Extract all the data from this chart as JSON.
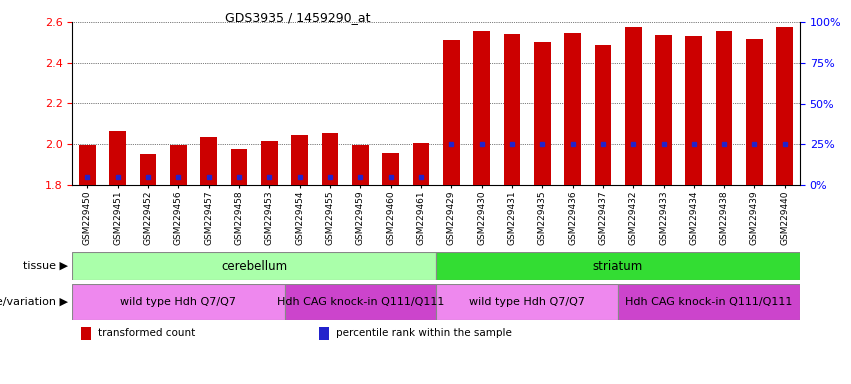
{
  "title": "GDS3935 / 1459290_at",
  "samples": [
    "GSM229450",
    "GSM229451",
    "GSM229452",
    "GSM229456",
    "GSM229457",
    "GSM229458",
    "GSM229453",
    "GSM229454",
    "GSM229455",
    "GSM229459",
    "GSM229460",
    "GSM229461",
    "GSM229429",
    "GSM229430",
    "GSM229431",
    "GSM229435",
    "GSM229436",
    "GSM229437",
    "GSM229432",
    "GSM229433",
    "GSM229434",
    "GSM229438",
    "GSM229439",
    "GSM229440"
  ],
  "transformed_count": [
    1.995,
    2.065,
    1.95,
    1.995,
    2.035,
    1.975,
    2.015,
    2.045,
    2.055,
    1.995,
    1.955,
    2.005,
    2.51,
    2.555,
    2.54,
    2.5,
    2.545,
    2.488,
    2.575,
    2.535,
    2.53,
    2.555,
    2.515,
    2.575
  ],
  "percentile_rank_pct": [
    5,
    5,
    5,
    5,
    5,
    5,
    5,
    5,
    5,
    5,
    5,
    5,
    25,
    25,
    25,
    25,
    25,
    25,
    25,
    25,
    25,
    25,
    25,
    25
  ],
  "bar_base": 1.8,
  "ylim": [
    1.8,
    2.6
  ],
  "yticks_left": [
    1.8,
    2.0,
    2.2,
    2.4,
    2.6
  ],
  "yticks_right": [
    0,
    25,
    50,
    75,
    100
  ],
  "bar_color": "#cc0000",
  "dot_color": "#2222cc",
  "tissue_groups": [
    {
      "label": "cerebellum",
      "start": 0,
      "end": 12,
      "color": "#aaffaa"
    },
    {
      "label": "striatum",
      "start": 12,
      "end": 24,
      "color": "#33dd33"
    }
  ],
  "genotype_groups": [
    {
      "label": "wild type Hdh Q7/Q7",
      "start": 0,
      "end": 7,
      "color": "#ee88ee"
    },
    {
      "label": "Hdh CAG knock-in Q111/Q111",
      "start": 7,
      "end": 12,
      "color": "#cc44cc"
    },
    {
      "label": "wild type Hdh Q7/Q7",
      "start": 12,
      "end": 18,
      "color": "#ee88ee"
    },
    {
      "label": "Hdh CAG knock-in Q111/Q111",
      "start": 18,
      "end": 24,
      "color": "#cc44cc"
    }
  ],
  "tissue_label": "tissue",
  "genotype_label": "genotype/variation",
  "legend_items": [
    {
      "label": "transformed count",
      "color": "#cc0000"
    },
    {
      "label": "percentile rank within the sample",
      "color": "#2222cc"
    }
  ],
  "background_color": "#ffffff",
  "bar_width": 0.55,
  "chart_bg": "#ffffff"
}
